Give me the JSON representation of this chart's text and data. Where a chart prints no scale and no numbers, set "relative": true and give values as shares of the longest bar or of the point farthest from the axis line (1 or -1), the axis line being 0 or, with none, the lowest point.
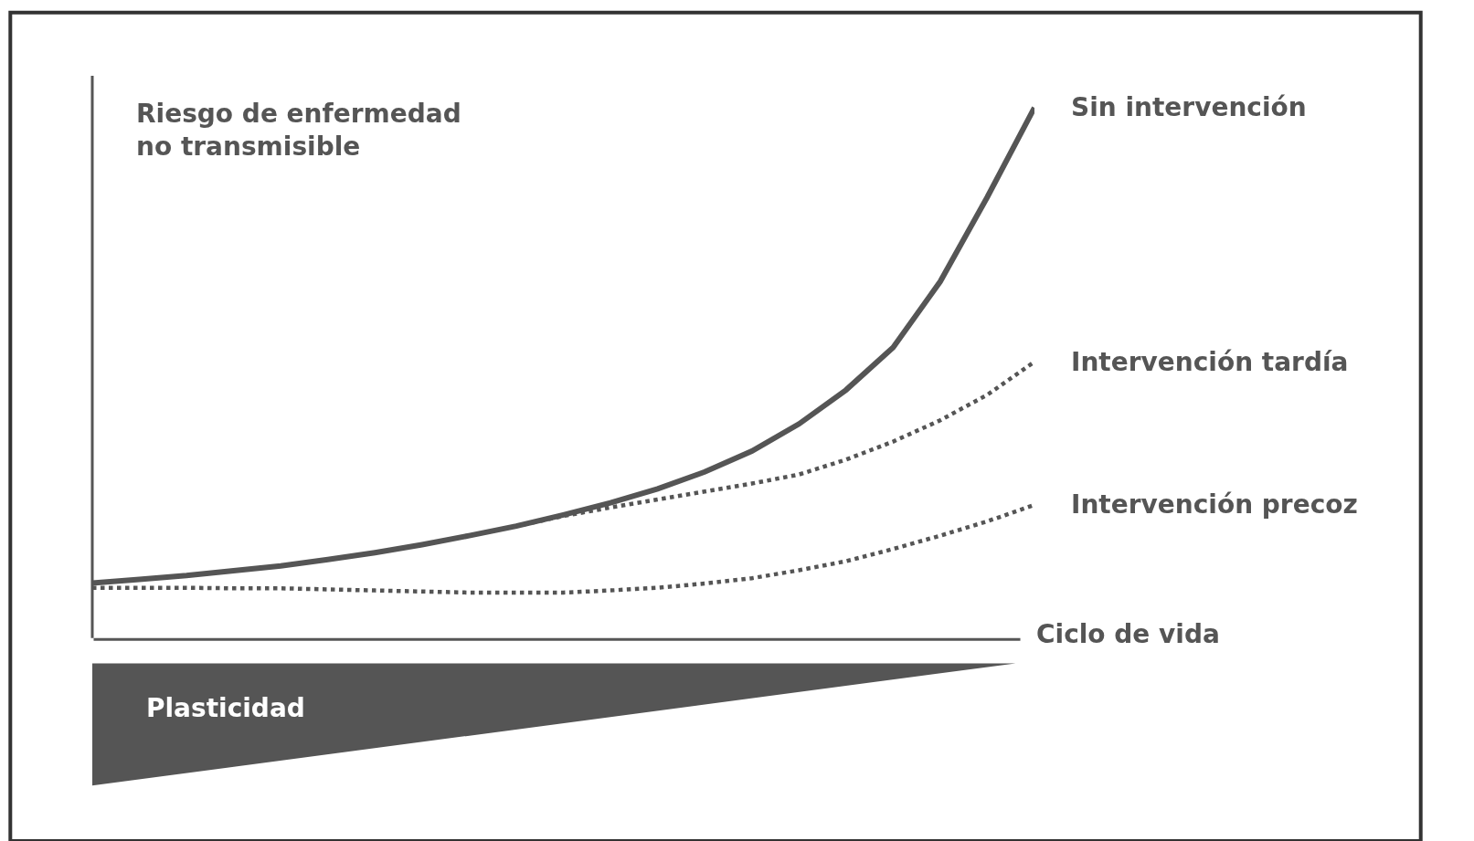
{
  "chart_data": {
    "type": "line",
    "relative": true,
    "xlabel": "Ciclo de vida",
    "ylabel": "Riesgo de enfermedad no transmisible",
    "legend": false,
    "marker": "none",
    "categories": [
      null,
      null,
      null,
      null,
      null,
      null,
      null,
      null,
      null,
      null,
      null,
      null,
      null,
      null,
      null,
      null,
      null,
      null,
      null,
      null,
      null
    ],
    "series": [
      {
        "name": "Sin intervención",
        "color": "#555555",
        "line_style": "solid",
        "values": [
          0.106,
          0.113,
          0.12,
          0.129,
          0.138,
          0.15,
          0.163,
          0.178,
          0.195,
          0.213,
          0.234,
          0.257,
          0.283,
          0.315,
          0.354,
          0.405,
          0.469,
          0.549,
          0.673,
          0.832,
          1
        ]
      },
      {
        "name": "Intervención tardía",
        "color": "#555555",
        "line_style": "dotted",
        "values": [
          null,
          null,
          null,
          null,
          null,
          null,
          null,
          null,
          null,
          0.213,
          0.232,
          0.248,
          0.263,
          0.278,
          0.293,
          0.31,
          0.338,
          0.372,
          0.412,
          0.46,
          0.522
        ]
      },
      {
        "name": "Intervención precoz",
        "color": "#555555",
        "line_style": "dotted",
        "values": [
          0.097,
          0.097,
          0.097,
          0.096,
          0.096,
          0.094,
          0.092,
          0.09,
          0.088,
          0.088,
          0.088,
          0.092,
          0.097,
          0.105,
          0.115,
          0.13,
          0.147,
          0.17,
          0.195,
          0.222,
          0.253
        ]
      }
    ],
    "annotations": [
      "Plasticidad"
    ]
  }
}
